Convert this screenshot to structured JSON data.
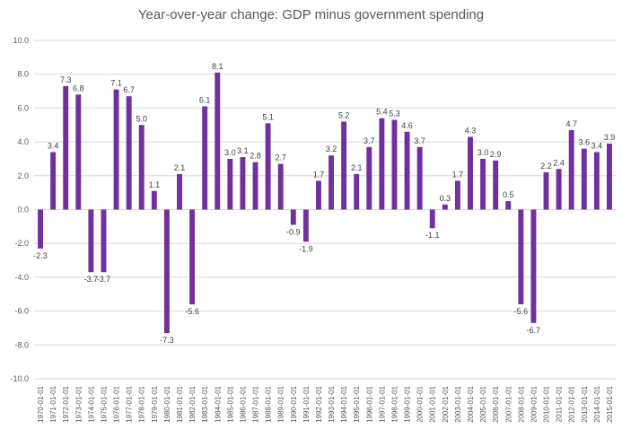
{
  "chart_data": {
    "type": "bar",
    "title": "Year-over-year change: GDP minus government spending",
    "xlabel": "",
    "ylabel": "",
    "ylim": [
      -10,
      10
    ],
    "ytick_step": 2,
    "ytick_labels": [
      "10.0",
      "8.0",
      "6.0",
      "4.0",
      "2.0",
      "0.0",
      "-2.0",
      "-4.0",
      "-6.0",
      "-8.0",
      "-10.0"
    ],
    "grid": true,
    "legend": "none",
    "bar_color": "#7030a0",
    "grid_color": "#d9d9d9",
    "categories": [
      "1970-01-01",
      "1971-01-01",
      "1972-01-01",
      "1973-01-01",
      "1974-01-01",
      "1975-01-01",
      "1976-01-01",
      "1977-01-01",
      "1978-01-01",
      "1979-01-01",
      "1980-01-01",
      "1981-01-01",
      "1982-01-01",
      "1983-01-01",
      "1984-01-01",
      "1985-01-01",
      "1986-01-01",
      "1987-01-01",
      "1988-01-01",
      "1989-01-01",
      "1990-01-01",
      "1991-01-01",
      "1992-01-01",
      "1993-01-01",
      "1994-01-01",
      "1995-01-01",
      "1996-01-01",
      "1997-01-01",
      "1998-01-01",
      "1999-01-01",
      "2000-01-01",
      "2001-01-01",
      "2002-01-01",
      "2003-01-01",
      "2004-01-01",
      "2005-01-01",
      "2006-01-01",
      "2007-01-01",
      "2008-01-01",
      "2009-01-01",
      "2010-01-01",
      "2011-01-01",
      "2012-01-01",
      "2013-01-01",
      "2014-01-01",
      "2015-01-01"
    ],
    "values": [
      -2.3,
      3.4,
      7.3,
      6.8,
      -3.7,
      -3.7,
      7.1,
      6.7,
      5.0,
      1.1,
      -7.3,
      2.1,
      -5.6,
      6.1,
      8.1,
      3.0,
      3.1,
      2.8,
      5.1,
      2.7,
      -0.9,
      -1.9,
      1.7,
      3.2,
      5.2,
      2.1,
      3.7,
      5.4,
      5.3,
      4.6,
      3.7,
      -1.1,
      0.3,
      1.7,
      4.3,
      3.0,
      2.9,
      0.5,
      -5.6,
      -6.7,
      2.2,
      2.4,
      4.7,
      3.6,
      3.4,
      3.9
    ]
  }
}
